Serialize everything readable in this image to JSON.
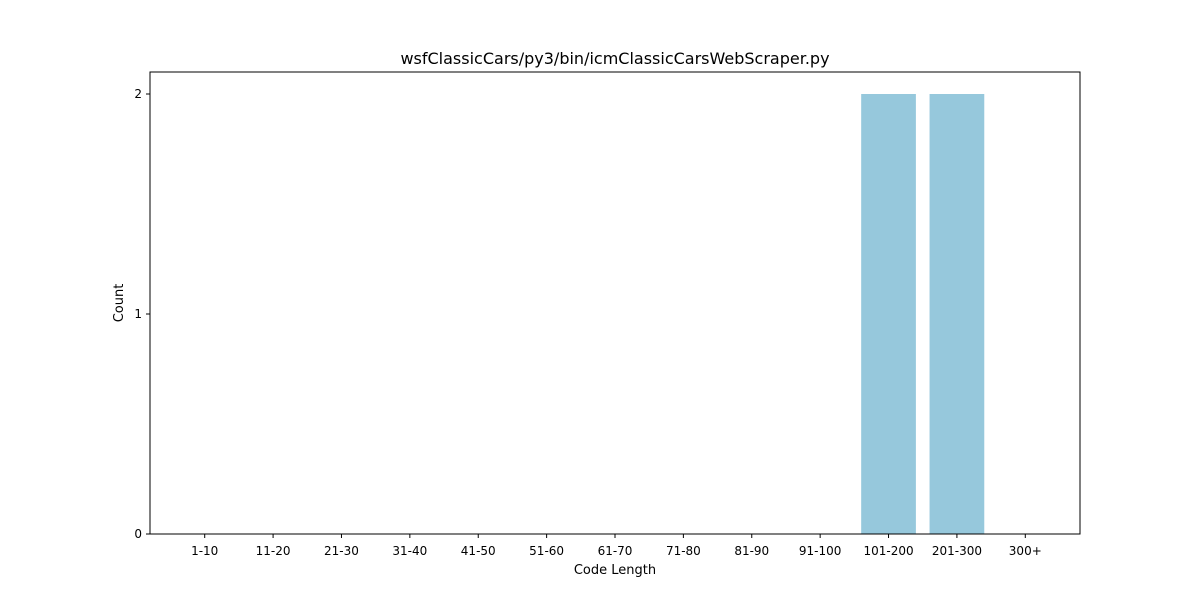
{
  "chart_data": {
    "type": "bar",
    "title": "wsfClassicCars/py3/bin/icmClassicCarsWebScraper.py",
    "xlabel": "Code Length",
    "ylabel": "Count",
    "categories": [
      "1-10",
      "11-20",
      "21-30",
      "31-40",
      "41-50",
      "51-60",
      "61-70",
      "71-80",
      "81-90",
      "91-100",
      "101-200",
      "201-300",
      "300+"
    ],
    "values": [
      0,
      0,
      0,
      0,
      0,
      0,
      0,
      0,
      0,
      0,
      2,
      2,
      0
    ],
    "ylim": [
      0,
      2.1
    ],
    "yticks": [
      0,
      1,
      2
    ],
    "bar_color": "#96c8dc",
    "grid": false,
    "legend": "none"
  }
}
